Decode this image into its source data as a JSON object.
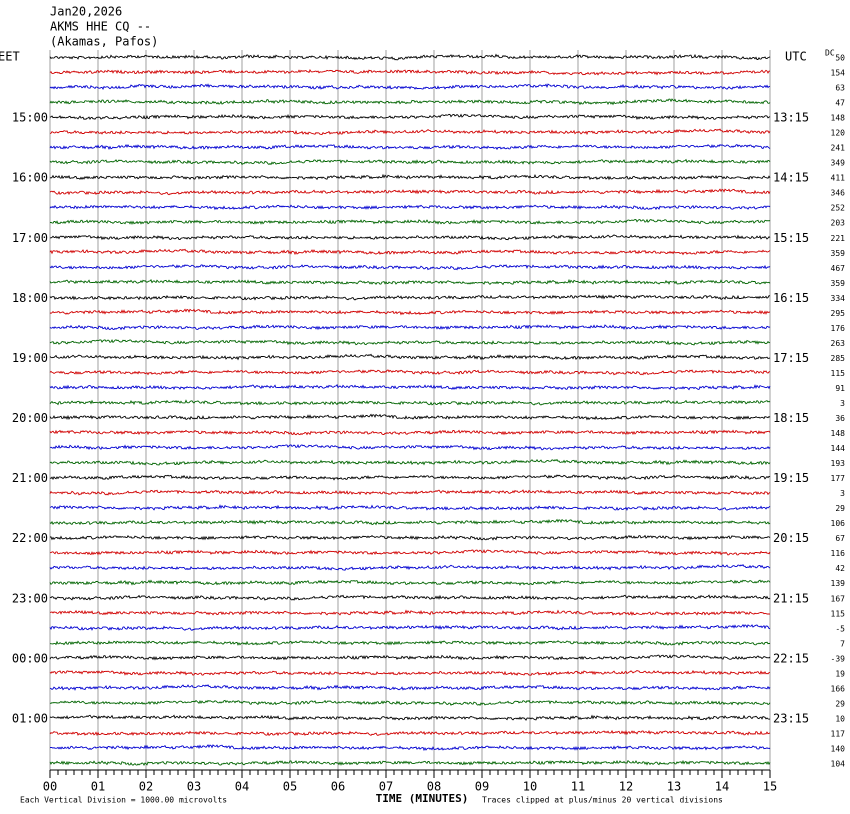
{
  "header": {
    "date": "Jan20,2026",
    "station": "AKMS HHE CQ --",
    "location": "(Akamas, Pafos)"
  },
  "left_zone": "EET",
  "right_zone": "UTC",
  "left_times": [
    "15:00",
    "16:00",
    "17:00",
    "18:00",
    "19:00",
    "20:00",
    "21:00",
    "22:00",
    "23:00",
    "00:00",
    "01:00"
  ],
  "right_times": [
    "13:15",
    "14:15",
    "15:15",
    "16:15",
    "17:15",
    "18:15",
    "19:15",
    "20:15",
    "21:15",
    "22:15",
    "23:15"
  ],
  "dc_label": "DC",
  "dc_values": [
    50,
    154,
    63,
    47,
    148,
    120,
    241,
    349,
    411,
    346,
    252,
    203,
    221,
    359,
    467,
    359,
    334,
    295,
    176,
    263,
    285,
    115,
    91,
    3,
    36,
    148,
    144,
    193,
    177,
    3,
    29,
    106,
    67,
    116,
    42,
    139,
    167,
    115,
    -5,
    7,
    -39,
    19,
    166,
    29,
    10,
    117,
    140,
    104
  ],
  "trace_colors": [
    "#000000",
    "#d00000",
    "#0000d0",
    "#006400"
  ],
  "x_axis": {
    "labels": [
      "00",
      "01",
      "02",
      "03",
      "04",
      "05",
      "06",
      "07",
      "08",
      "09",
      "10",
      "11",
      "12",
      "13",
      "14",
      "15"
    ],
    "title": "TIME (MINUTES)"
  },
  "footer_left": "Each Vertical Division = 1000.00 microvolts",
  "footer_right": "Traces clipped at plus/minus 20 vertical divisions"
}
